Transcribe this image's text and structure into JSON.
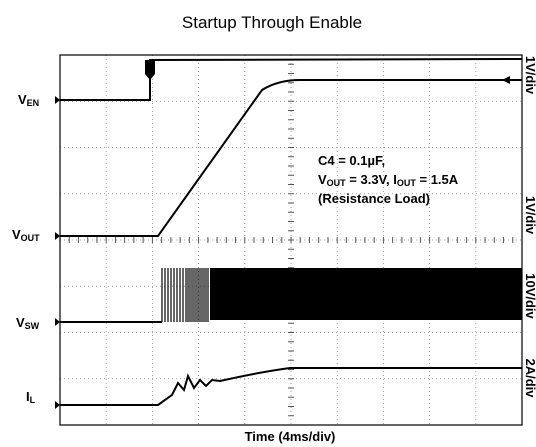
{
  "title": "Startup Through Enable",
  "x_label": "Time (4ms/div)",
  "channels": [
    {
      "main": "V",
      "sub": "EN",
      "scale": "1V/div"
    },
    {
      "main": "V",
      "sub": "OUT",
      "scale": "1V/div"
    },
    {
      "main": "V",
      "sub": "SW",
      "scale": "10V/div"
    },
    {
      "main": "I",
      "sub": "L",
      "scale": "2A/div"
    }
  ],
  "annotation": [
    [
      {
        "text": "C4 = 0.1µF,",
        "sub": false
      }
    ],
    [
      {
        "text": "V",
        "sub": false
      },
      {
        "text": "OUT",
        "sub": true
      },
      {
        "text": " = 3.3V, I",
        "sub": false
      },
      {
        "text": "OUT",
        "sub": true
      },
      {
        "text": " = 1.5A",
        "sub": false
      }
    ],
    [
      {
        "text": "(Resistance Load)",
        "sub": false
      }
    ]
  ]
}
